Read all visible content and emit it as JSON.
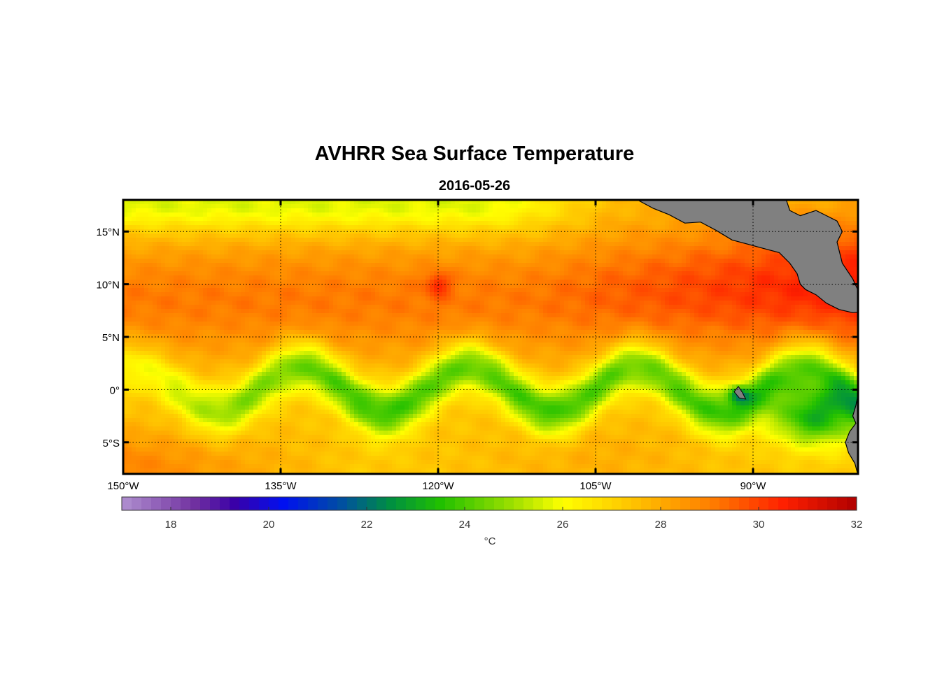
{
  "title": "AVHRR Sea Surface Temperature",
  "subtitle": "2016-05-26",
  "chart_data": {
    "type": "heatmap",
    "variable": "Sea Surface Temperature",
    "units": "°C",
    "lon_range": [
      -150,
      -80
    ],
    "lat_range": [
      -8,
      18
    ],
    "lon_ticks": [
      {
        "value": -150,
        "label": "150°W"
      },
      {
        "value": -135,
        "label": "135°W"
      },
      {
        "value": -120,
        "label": "120°W"
      },
      {
        "value": -105,
        "label": "105°W"
      },
      {
        "value": -90,
        "label": "90°W"
      }
    ],
    "lat_ticks": [
      {
        "value": 15,
        "label": "15°N"
      },
      {
        "value": 10,
        "label": "10°N"
      },
      {
        "value": 5,
        "label": "5°N"
      },
      {
        "value": 0,
        "label": "0°"
      },
      {
        "value": -5,
        "label": "5°S"
      }
    ],
    "grid": true,
    "colorbar": {
      "range": [
        17,
        32
      ],
      "ticks": [
        18,
        20,
        22,
        24,
        26,
        28,
        30,
        32
      ],
      "label": "°C",
      "colors": [
        {
          "value": 17,
          "color": "#b090d0"
        },
        {
          "value": 18.5,
          "color": "#7030a0"
        },
        {
          "value": 19.3,
          "color": "#3a00a8"
        },
        {
          "value": 20.3,
          "color": "#0010f0"
        },
        {
          "value": 21.5,
          "color": "#0050a0"
        },
        {
          "value": 22.5,
          "color": "#009040"
        },
        {
          "value": 23.5,
          "color": "#20c000"
        },
        {
          "value": 25,
          "color": "#a0e000"
        },
        {
          "value": 26,
          "color": "#ffff00"
        },
        {
          "value": 27.5,
          "color": "#ffc000"
        },
        {
          "value": 29,
          "color": "#ff8000"
        },
        {
          "value": 30.5,
          "color": "#ff2000"
        },
        {
          "value": 32,
          "color": "#b00000"
        }
      ]
    },
    "land_color": "#808080"
  }
}
